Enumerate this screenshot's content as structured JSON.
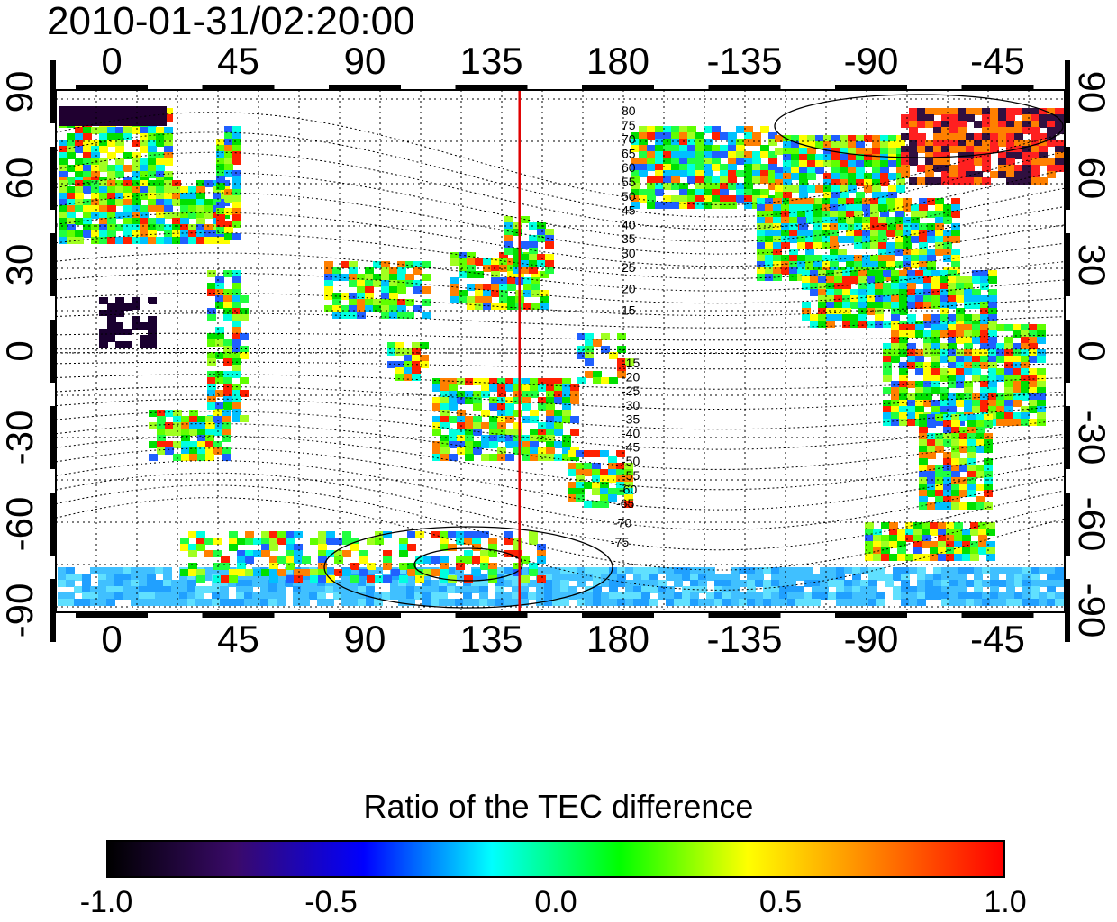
{
  "header": {
    "timestamp": "2010-01-31/02:20:00"
  },
  "map": {
    "longitude_ticks_top": [
      "0",
      "45",
      "90",
      "135",
      "180",
      "-135",
      "-90",
      "-45"
    ],
    "longitude_ticks_bottom": [
      "0",
      "45",
      "90",
      "135",
      "180",
      "-135",
      "-90",
      "-45"
    ],
    "latitude_ticks_left": [
      "90",
      "60",
      "30",
      "0",
      "-30",
      "-60",
      "-90"
    ],
    "latitude_ticks_right": [
      "90",
      "60",
      "30",
      "0",
      "-30",
      "-60",
      "-90"
    ],
    "contour_labels_north": [
      "80",
      "75",
      "70",
      "65",
      "60",
      "55",
      "50",
      "45",
      "40",
      "35",
      "30",
      "25",
      "20",
      "15"
    ],
    "contour_labels_south": [
      "-15",
      "-20",
      "-25",
      "-30",
      "-35",
      "-40",
      "-45",
      "-50",
      "-55",
      "-60",
      "-65",
      "-70",
      "-75"
    ],
    "red_line_longitude": 145,
    "colors": {
      "red_line": "#e00000",
      "frame": "#000000"
    }
  },
  "colorbar": {
    "title": "Ratio of the TEC difference",
    "tick_labels": [
      "-1.0",
      "-0.5",
      "0.0",
      "0.5",
      "1.0"
    ],
    "range": [
      -1.0,
      1.0
    ],
    "gradient_stops": [
      "#000000",
      "#3a0a6a",
      "#0000ff",
      "#00ffff",
      "#00ff00",
      "#ffff00",
      "#ff8000",
      "#ff0000"
    ]
  }
}
